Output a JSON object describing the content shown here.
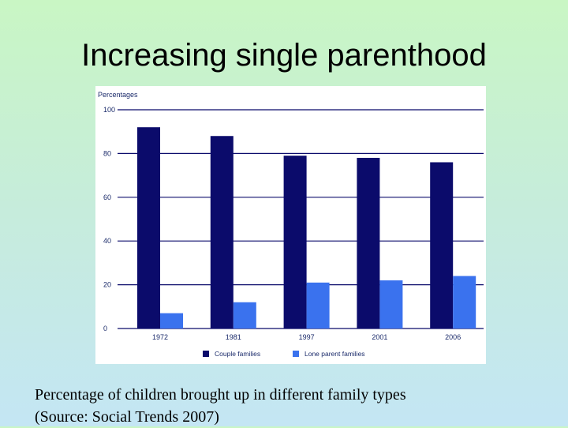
{
  "slide": {
    "title": "Increasing single parenthood",
    "caption_line1": "Percentage of children brought up in different family types",
    "caption_line2": "(Source: Social Trends 2007)"
  },
  "chart_data": {
    "type": "bar",
    "ylabel": "Percentages",
    "categories": [
      "1972",
      "1981",
      "1997",
      "2001",
      "2006"
    ],
    "series": [
      {
        "name": "Couple families",
        "color": "#0b0b6b",
        "values": [
          92,
          88,
          79,
          78,
          76
        ]
      },
      {
        "name": "Lone parent families",
        "color": "#3a72ee",
        "values": [
          7,
          12,
          21,
          22,
          24
        ]
      }
    ],
    "ylim": [
      0,
      100
    ],
    "yticks": [
      0,
      20,
      40,
      60,
      80,
      100
    ],
    "grid": true,
    "legend_position": "bottom"
  }
}
